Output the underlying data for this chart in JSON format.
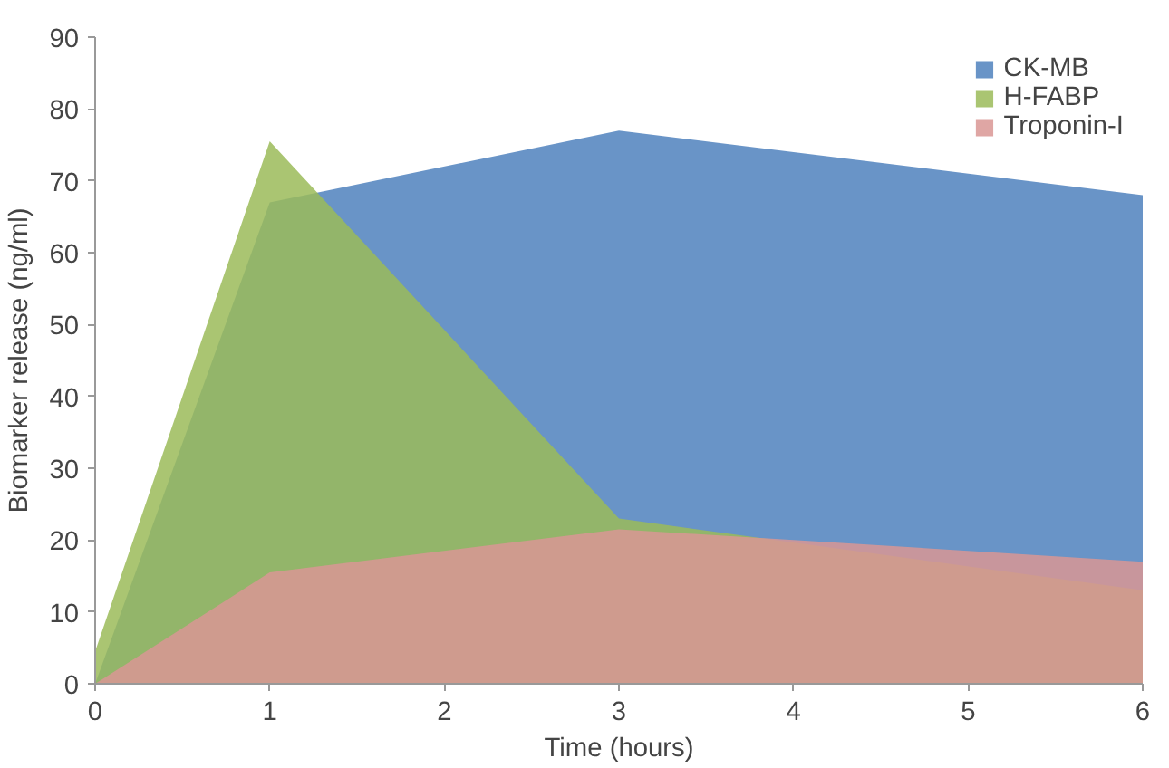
{
  "chart_data": {
    "type": "area",
    "xlabel": "Time (hours)",
    "ylabel": "Biomarker release (ng/ml)",
    "x": [
      0,
      1,
      3,
      6
    ],
    "series": [
      {
        "name": "CK-MB",
        "color": "#4f81bd",
        "values": [
          0,
          67,
          77,
          68
        ]
      },
      {
        "name": "H-FABP",
        "color": "#9bbb59",
        "values": [
          4.5,
          75.5,
          23,
          13
        ]
      },
      {
        "name": "Troponin-I",
        "color": "#d99694",
        "values": [
          0,
          15.5,
          21.5,
          17
        ]
      }
    ],
    "xlim": [
      0,
      6
    ],
    "xticks": [
      0,
      1,
      2,
      3,
      4,
      5,
      6
    ],
    "ylim": [
      0,
      90
    ],
    "yticks": [
      0,
      10,
      20,
      30,
      40,
      50,
      60,
      70,
      80,
      90
    ],
    "grid": false,
    "legend": "top right"
  }
}
